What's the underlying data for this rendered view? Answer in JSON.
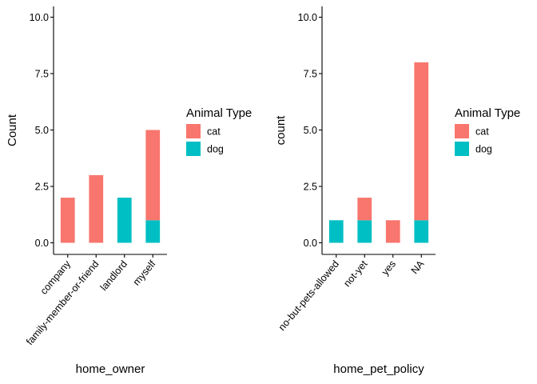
{
  "colors": {
    "cat": "#F8766D",
    "dog": "#00BFC4"
  },
  "chart_data": [
    {
      "type": "bar",
      "stacked": true,
      "categories": [
        "company",
        "family-member-or-friend",
        "landlord",
        "myself"
      ],
      "series": [
        {
          "name": "cat",
          "values": [
            2,
            3,
            0,
            4
          ]
        },
        {
          "name": "dog",
          "values": [
            0,
            0,
            2,
            1
          ]
        }
      ],
      "xlabel": "home_owner",
      "ylabel": "Count",
      "ylim": [
        0,
        10
      ],
      "yticks": [
        "0.0",
        "2.5",
        "5.0",
        "7.5",
        "10.0"
      ],
      "legend": {
        "title": "Animal Type",
        "entries": [
          "cat",
          "dog"
        ],
        "position": "right"
      },
      "grid": false
    },
    {
      "type": "bar",
      "stacked": true,
      "categories": [
        "no-but-pets-allowed",
        "not-yet",
        "yes",
        "NA"
      ],
      "series": [
        {
          "name": "cat",
          "values": [
            0,
            1,
            1,
            7
          ]
        },
        {
          "name": "dog",
          "values": [
            1,
            1,
            0,
            1
          ]
        }
      ],
      "xlabel": "home_pet_policy",
      "ylabel": "count",
      "ylim": [
        0,
        10
      ],
      "yticks": [
        "0.0",
        "2.5",
        "5.0",
        "7.5",
        "10.0"
      ],
      "legend": {
        "title": "Animal Type",
        "entries": [
          "cat",
          "dog"
        ],
        "position": "right"
      },
      "grid": false
    }
  ]
}
